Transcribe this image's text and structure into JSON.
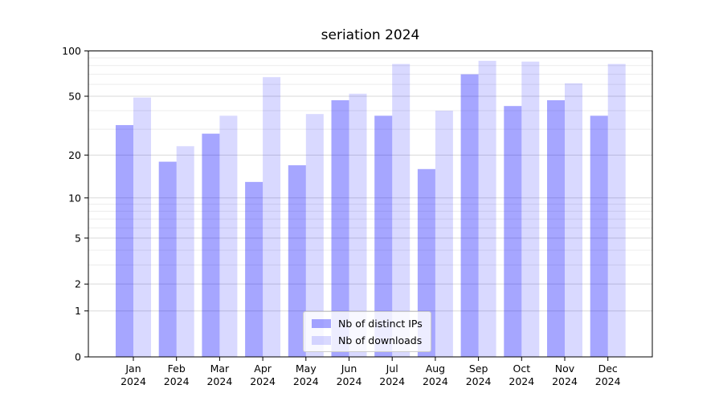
{
  "chart_data": {
    "type": "bar",
    "title": "seriation 2024",
    "categories": [
      "Jan 2024",
      "Feb 2024",
      "Mar 2024",
      "Apr 2024",
      "May 2024",
      "Jun 2024",
      "Jul 2024",
      "Aug 2024",
      "Sep 2024",
      "Oct 2024",
      "Nov 2024",
      "Dec 2024"
    ],
    "series": [
      {
        "name": "Nb of distinct IPs",
        "color": "#0000ff",
        "alpha": 0.35,
        "rendered_color": "#a6a6fa",
        "values": [
          32,
          18,
          28,
          13,
          17,
          47,
          37,
          16,
          70,
          43,
          47,
          37
        ]
      },
      {
        "name": "Nb of downloads",
        "color": "#0000ff",
        "alpha": 0.15,
        "rendered_color": "#d9d9fc",
        "values": [
          49,
          23,
          37,
          67,
          38,
          52,
          82,
          40,
          86,
          85,
          61,
          82
        ]
      }
    ],
    "yscale": "log1p",
    "ylim": [
      0,
      100
    ],
    "yticks": [
      0,
      1,
      2,
      5,
      10,
      20,
      50,
      100
    ],
    "yticks_minor": [
      3,
      4,
      6,
      7,
      8,
      9,
      30,
      40,
      60,
      70,
      80,
      90
    ],
    "grid": true,
    "grid_color_major": "#d9d9d9",
    "grid_color_minor": "#ececec",
    "legend_position": "lower center"
  }
}
